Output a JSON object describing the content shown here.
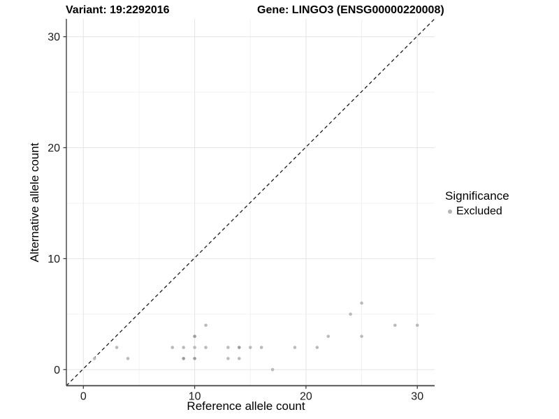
{
  "titles": {
    "variant": "Variant: 19:2292016",
    "gene": "Gene: LINGO3 (ENSG00000220008)"
  },
  "chart_data": {
    "type": "scatter",
    "title_left": "Variant: 19:2292016",
    "title_right": "Gene: LINGO3 (ENSG00000220008)",
    "xlabel": "Reference allele count",
    "ylabel": "Alternative allele count",
    "xlim": [
      -1.5,
      31.5
    ],
    "ylim": [
      -1.5,
      31.5
    ],
    "x_major_ticks": [
      0,
      10,
      20,
      30
    ],
    "y_major_ticks": [
      0,
      10,
      20,
      30
    ],
    "x_minor_gridlines": [
      5,
      15,
      25
    ],
    "y_minor_gridlines": [
      5,
      15,
      25
    ],
    "grid": "on",
    "identity_line": {
      "style": "dashed",
      "slope": 1,
      "intercept": 0
    },
    "legend": {
      "position": "right",
      "title": "Significance",
      "items": [
        {
          "label": "Excluded",
          "color": "#b3b3b3"
        }
      ]
    },
    "series": [
      {
        "name": "Excluded",
        "points": [
          {
            "x": 1,
            "y": 1,
            "n": 1
          },
          {
            "x": 3,
            "y": 2,
            "n": 1
          },
          {
            "x": 4,
            "y": 1,
            "n": 1
          },
          {
            "x": 8,
            "y": 2,
            "n": 1
          },
          {
            "x": 9,
            "y": 2,
            "n": 1
          },
          {
            "x": 9,
            "y": 1,
            "n": 2
          },
          {
            "x": 10,
            "y": 3,
            "n": 2
          },
          {
            "x": 10,
            "y": 2,
            "n": 1
          },
          {
            "x": 10,
            "y": 1,
            "n": 2
          },
          {
            "x": 11,
            "y": 4,
            "n": 1
          },
          {
            "x": 11,
            "y": 2,
            "n": 1
          },
          {
            "x": 13,
            "y": 2,
            "n": 1
          },
          {
            "x": 13,
            "y": 1,
            "n": 1
          },
          {
            "x": 14,
            "y": 2,
            "n": 2
          },
          {
            "x": 14,
            "y": 1,
            "n": 1
          },
          {
            "x": 15,
            "y": 2,
            "n": 1
          },
          {
            "x": 16,
            "y": 2,
            "n": 1
          },
          {
            "x": 17,
            "y": 0,
            "n": 1
          },
          {
            "x": 19,
            "y": 2,
            "n": 1
          },
          {
            "x": 21,
            "y": 2,
            "n": 1
          },
          {
            "x": 22,
            "y": 3,
            "n": 1
          },
          {
            "x": 24,
            "y": 5,
            "n": 1
          },
          {
            "x": 25,
            "y": 6,
            "n": 1
          },
          {
            "x": 25,
            "y": 3,
            "n": 1
          },
          {
            "x": 28,
            "y": 4,
            "n": 1
          },
          {
            "x": 30,
            "y": 4,
            "n": 1
          }
        ]
      }
    ]
  },
  "colors": {
    "point_single": "#bababa",
    "point_overlap": "#9c9c9c",
    "legend_dot": "#b3b3b3",
    "grid_major": "#e4e4e4",
    "grid_minor": "#f1f1f1",
    "axis_line": "#4d4d4d",
    "tick_mark": "#333333",
    "tick_text": "#1a1a1a",
    "identity_line": "#1a1a1a"
  }
}
